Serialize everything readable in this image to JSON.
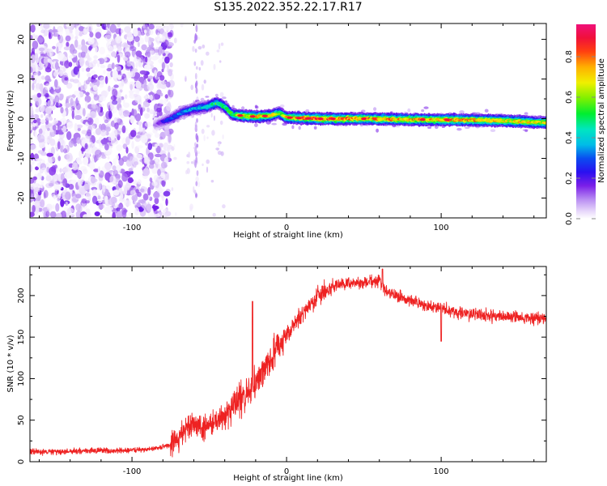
{
  "title": "S135.2022.352.22.17.R17",
  "colors": {
    "snr_line": "#ee2222",
    "frame": "#000000"
  },
  "chart_data": [
    {
      "type": "heatmap",
      "title": "S135.2022.352.22.17.R17",
      "xlabel": "Height of straight line (km)",
      "ylabel": "Frequency (Hz)",
      "xlim": [
        -166,
        168
      ],
      "ylim": [
        -25,
        24
      ],
      "x_ticks": [
        -100,
        0,
        100
      ],
      "x_tick_labels": [
        "-100",
        "0",
        "100"
      ],
      "y_ticks": [
        -20,
        -10,
        0,
        10,
        20
      ],
      "y_tick_labels": [
        "-20",
        "-10",
        "0",
        "10",
        "20"
      ],
      "colorbar": {
        "label": "Normalized spectral amplitude",
        "range": [
          0,
          0.96
        ],
        "ticks": [
          0.0,
          0.2,
          0.4,
          0.6,
          0.8
        ],
        "tick_labels": [
          "0.0",
          "0.2",
          "0.4",
          "0.6",
          "0.8"
        ],
        "colormap": "rainbow (white-violet-blue-cyan-green-yellow-orange-red-magenta)"
      },
      "features": {
        "noise_region_x": [
          -166,
          -74
        ],
        "sparse_region_x": [
          -74,
          -40
        ],
        "ridge": [
          {
            "x": -85,
            "freq": -1.5,
            "amp": 0.12
          },
          {
            "x": -75,
            "freq": 0.0,
            "amp": 0.3
          },
          {
            "x": -68,
            "freq": 1.5,
            "amp": 0.35
          },
          {
            "x": -60,
            "freq": 2.5,
            "amp": 0.4
          },
          {
            "x": -52,
            "freq": 3.0,
            "amp": 0.45
          },
          {
            "x": -45,
            "freq": 4.0,
            "amp": 0.55
          },
          {
            "x": -40,
            "freq": 3.0,
            "amp": 0.5
          },
          {
            "x": -35,
            "freq": 1.0,
            "amp": 0.55
          },
          {
            "x": -30,
            "freq": 0.8,
            "amp": 0.7
          },
          {
            "x": -20,
            "freq": 0.5,
            "amp": 0.75
          },
          {
            "x": -10,
            "freq": 0.8,
            "amp": 0.7
          },
          {
            "x": -5,
            "freq": 1.5,
            "amp": 0.6
          },
          {
            "x": 0,
            "freq": 0.3,
            "amp": 0.75
          },
          {
            "x": 20,
            "freq": 0.0,
            "amp": 0.85
          },
          {
            "x": 50,
            "freq": 0.0,
            "amp": 0.8
          },
          {
            "x": 80,
            "freq": -0.2,
            "amp": 0.8
          },
          {
            "x": 110,
            "freq": -0.3,
            "amp": 0.8
          },
          {
            "x": 140,
            "freq": -0.5,
            "amp": 0.75
          },
          {
            "x": 168,
            "freq": -1.0,
            "amp": 0.7
          }
        ]
      }
    },
    {
      "type": "line",
      "xlabel": "Height of straight line (km)",
      "ylabel": "SNR (10 * v/v)",
      "xlim": [
        -166,
        168
      ],
      "ylim": [
        0,
        235
      ],
      "x_ticks": [
        -100,
        0,
        100
      ],
      "x_tick_labels": [
        "-100",
        "0",
        "100"
      ],
      "y_ticks": [
        0,
        50,
        100,
        150,
        200
      ],
      "y_tick_labels": [
        "0",
        "50",
        "100",
        "150",
        "200"
      ],
      "series": [
        {
          "color": "#ee2222",
          "x": [
            -166,
            -150,
            -130,
            -110,
            -90,
            -80,
            -75,
            -70,
            -65,
            -60,
            -55,
            -50,
            -45,
            -40,
            -35,
            -30,
            -25,
            -20,
            -15,
            -10,
            -5,
            0,
            5,
            10,
            15,
            20,
            25,
            30,
            35,
            40,
            50,
            60,
            65,
            70,
            80,
            90,
            100,
            110,
            120,
            130,
            140,
            150,
            160,
            168
          ],
          "y": [
            12,
            12,
            13,
            13,
            15,
            18,
            20,
            28,
            40,
            45,
            40,
            42,
            50,
            55,
            65,
            75,
            82,
            95,
            110,
            125,
            140,
            150,
            165,
            178,
            188,
            200,
            205,
            210,
            213,
            215,
            215,
            218,
            205,
            200,
            195,
            188,
            185,
            180,
            178,
            176,
            175,
            174,
            173,
            172
          ]
        }
      ]
    }
  ]
}
